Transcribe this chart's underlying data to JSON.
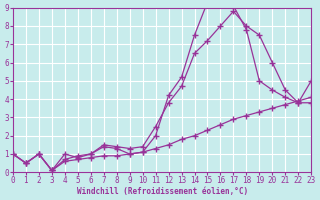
{
  "title": "",
  "xlabel": "Windchill (Refroidissement éolien,°C)",
  "ylabel": "",
  "bg_color": "#c8ecec",
  "grid_color": "#ffffff",
  "line_color": "#993399",
  "xlim": [
    0,
    23
  ],
  "ylim": [
    0,
    9
  ],
  "xticks": [
    0,
    1,
    2,
    3,
    4,
    5,
    6,
    7,
    8,
    9,
    10,
    11,
    12,
    13,
    14,
    15,
    16,
    17,
    18,
    19,
    20,
    21,
    22,
    23
  ],
  "yticks": [
    0,
    1,
    2,
    3,
    4,
    5,
    6,
    7,
    8,
    9
  ],
  "line1_x": [
    0,
    1,
    2,
    3,
    4,
    5,
    6,
    7,
    8,
    9,
    10,
    11,
    12,
    13,
    14,
    15,
    16,
    17,
    18,
    19,
    20,
    21,
    22,
    23
  ],
  "line1_y": [
    1.0,
    0.5,
    1.0,
    0.1,
    1.0,
    0.8,
    1.0,
    1.4,
    1.3,
    1.0,
    1.1,
    2.0,
    4.2,
    5.2,
    7.5,
    9.3,
    9.4,
    9.1,
    7.8,
    5.0,
    4.5,
    4.1,
    3.8,
    3.8
  ],
  "line2_x": [
    0,
    1,
    2,
    3,
    4,
    5,
    6,
    7,
    8,
    9,
    10,
    11,
    12,
    13,
    14,
    15,
    16,
    17,
    18,
    19,
    20,
    21,
    22,
    23
  ],
  "line2_y": [
    1.0,
    0.5,
    1.0,
    0.1,
    0.7,
    0.9,
    1.0,
    1.5,
    1.4,
    1.3,
    1.4,
    2.5,
    3.8,
    4.7,
    6.5,
    7.2,
    8.0,
    8.8,
    8.0,
    7.5,
    6.0,
    4.5,
    3.8,
    5.0
  ],
  "line3_x": [
    0,
    1,
    2,
    3,
    4,
    5,
    6,
    7,
    8,
    9,
    10,
    11,
    12,
    13,
    14,
    15,
    16,
    17,
    18,
    19,
    20,
    21,
    22,
    23
  ],
  "line3_y": [
    1.0,
    0.5,
    1.0,
    0.1,
    0.6,
    0.7,
    0.8,
    0.9,
    0.9,
    1.0,
    1.1,
    1.3,
    1.5,
    1.8,
    2.0,
    2.3,
    2.6,
    2.9,
    3.1,
    3.3,
    3.5,
    3.7,
    3.9,
    4.1
  ]
}
